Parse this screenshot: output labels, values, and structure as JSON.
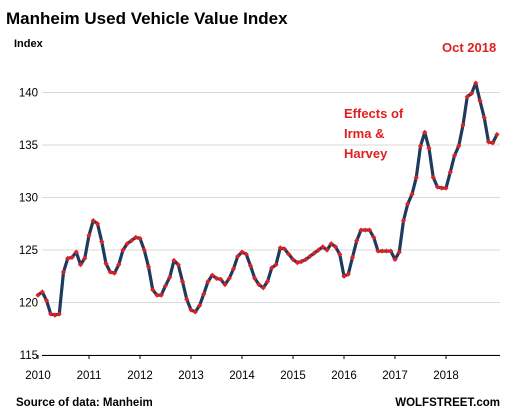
{
  "chart_data": {
    "type": "line",
    "title": "Manheim Used Vehicle Value Index",
    "ylabel": "Index",
    "ylim": [
      115,
      145
    ],
    "yticks": [
      115,
      120,
      125,
      130,
      135,
      140
    ],
    "xticks": [
      "2010",
      "2011",
      "2012",
      "2013",
      "2014",
      "2015",
      "2016",
      "2017",
      "2018"
    ],
    "x_start": "2010-01",
    "grid": "horizontal",
    "line_color": "#1f3a5f",
    "marker_color": "#e02020",
    "series": [
      {
        "values": [
          120.7,
          121.0,
          120.2,
          118.9,
          118.8,
          118.9,
          122.9,
          124.2,
          124.3,
          124.8,
          123.6,
          124.2,
          126.4,
          127.8,
          127.5,
          125.8,
          123.7,
          122.9,
          122.8,
          123.6,
          125.0,
          125.6,
          125.9,
          126.2,
          126.1,
          125.0,
          123.4,
          121.2,
          120.7,
          120.7,
          121.6,
          122.4,
          124.0,
          123.6,
          122.0,
          120.3,
          119.3,
          119.1,
          119.7,
          120.8,
          122.0,
          122.6,
          122.3,
          122.2,
          121.7,
          122.3,
          123.2,
          124.4,
          124.8,
          124.6,
          123.5,
          122.3,
          121.7,
          121.4,
          122.0,
          123.3,
          123.6,
          125.2,
          125.1,
          124.6,
          124.1,
          123.8,
          123.9,
          124.1,
          124.4,
          124.7,
          125.0,
          125.3,
          125.0,
          125.6,
          125.3,
          124.6,
          122.5,
          122.7,
          124.3,
          125.9,
          126.9,
          126.9,
          126.9,
          126.2,
          124.9,
          124.9,
          124.9,
          124.9,
          124.1,
          124.8,
          127.8,
          129.4,
          130.3,
          131.9,
          134.9,
          136.2,
          134.7,
          131.9,
          131.0,
          130.9,
          130.9,
          132.4,
          134.0,
          134.9,
          136.9,
          139.6,
          139.9,
          140.9,
          139.2,
          137.6,
          135.3,
          135.2,
          136.0
        ]
      }
    ],
    "annotations": [
      {
        "lines": [
          "Effects of",
          "Irma &",
          "Harvey"
        ]
      },
      {
        "lines": [
          "Oct 2018"
        ]
      }
    ]
  },
  "footer": {
    "source": "Source of data: Manheim",
    "brand": "WOLFSTREET.com"
  }
}
